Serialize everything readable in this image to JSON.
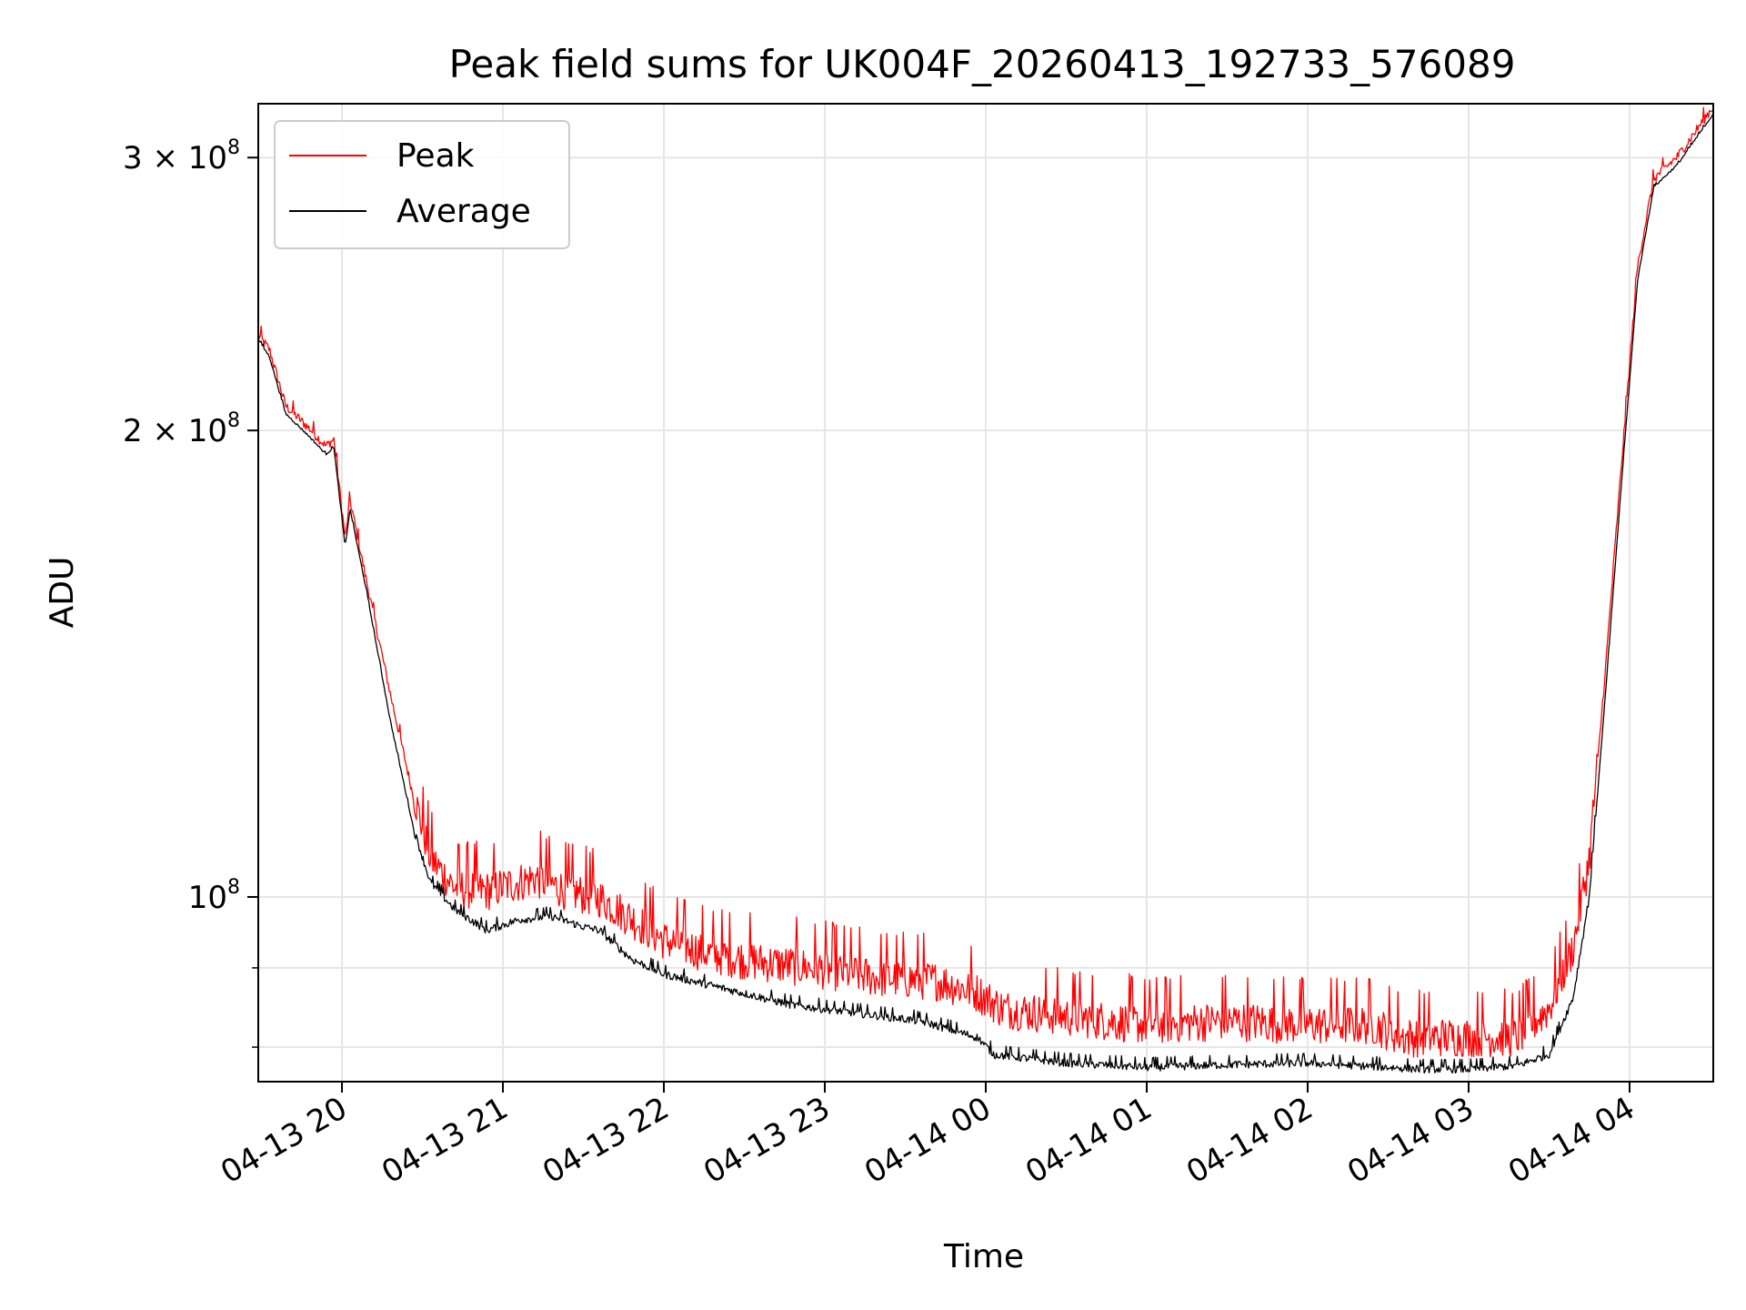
{
  "chart_data": {
    "type": "line",
    "title": "Peak field sums for UK004F_20260413_192733_576089",
    "xlabel": "Time",
    "ylabel": "ADU",
    "yscale": "log",
    "ylim": [
      76000000,
      325000000
    ],
    "xlim_hours": [
      -0.52,
      8.52
    ],
    "x_ticks": [
      {
        "hour": 0,
        "label": "04-13 20"
      },
      {
        "hour": 1,
        "label": "04-13 21"
      },
      {
        "hour": 2,
        "label": "04-13 22"
      },
      {
        "hour": 3,
        "label": "04-13 23"
      },
      {
        "hour": 4,
        "label": "04-14 00"
      },
      {
        "hour": 5,
        "label": "04-14 01"
      },
      {
        "hour": 6,
        "label": "04-14 02"
      },
      {
        "hour": 7,
        "label": "04-14 03"
      },
      {
        "hour": 8,
        "label": "04-14 04"
      }
    ],
    "y_ticks": [
      {
        "value": 100000000,
        "mantissa": "",
        "exp": "8"
      },
      {
        "value": 200000000,
        "mantissa": "2",
        "exp": "8"
      },
      {
        "value": 300000000,
        "mantissa": "3",
        "exp": "8"
      }
    ],
    "y_minor_ticks": [
      80000000,
      90000000
    ],
    "legend": {
      "location": "upper-left"
    },
    "series": [
      {
        "name": "Peak",
        "color": "#ff0000",
        "noise": 0.06,
        "points": [
          [
            -0.52,
            230000000
          ],
          [
            -0.45,
            225000000
          ],
          [
            -0.35,
            207000000
          ],
          [
            -0.2,
            200000000
          ],
          [
            -0.1,
            195000000
          ],
          [
            -0.05,
            197000000
          ],
          [
            0.02,
            170000000
          ],
          [
            0.05,
            180000000
          ],
          [
            0.15,
            160000000
          ],
          [
            0.3,
            135000000
          ],
          [
            0.45,
            115000000
          ],
          [
            0.55,
            105000000
          ],
          [
            0.7,
            100500000
          ],
          [
            0.9,
            100000000
          ],
          [
            1.2,
            102000000
          ],
          [
            1.4,
            100000000
          ],
          [
            1.6,
            99000000
          ],
          [
            1.8,
            96000000
          ],
          [
            2.0,
            93000000
          ],
          [
            2.3,
            91000000
          ],
          [
            2.6,
            90000000
          ],
          [
            3.0,
            89000000
          ],
          [
            3.3,
            88000000
          ],
          [
            3.7,
            87500000
          ],
          [
            3.95,
            86000000
          ],
          [
            4.1,
            84000000
          ],
          [
            4.5,
            83000000
          ],
          [
            5.0,
            82000000
          ],
          [
            5.5,
            82500000
          ],
          [
            6.0,
            82000000
          ],
          [
            6.4,
            82000000
          ],
          [
            6.6,
            80500000
          ],
          [
            7.0,
            80500000
          ],
          [
            7.3,
            80500000
          ],
          [
            7.5,
            84000000
          ],
          [
            7.65,
            92000000
          ],
          [
            7.75,
            105000000
          ],
          [
            7.85,
            140000000
          ],
          [
            7.95,
            190000000
          ],
          [
            8.05,
            255000000
          ],
          [
            8.15,
            290000000
          ],
          [
            8.3,
            300000000
          ],
          [
            8.52,
            323000000
          ]
        ]
      },
      {
        "name": "Average",
        "color": "#000000",
        "noise": 0.012,
        "points": [
          [
            -0.52,
            229000000
          ],
          [
            -0.45,
            223000000
          ],
          [
            -0.35,
            205000000
          ],
          [
            -0.2,
            198000000
          ],
          [
            -0.1,
            193000000
          ],
          [
            -0.05,
            195000000
          ],
          [
            0.02,
            168000000
          ],
          [
            0.05,
            178000000
          ],
          [
            0.15,
            158000000
          ],
          [
            0.3,
            130000000
          ],
          [
            0.45,
            110000000
          ],
          [
            0.55,
            102000000
          ],
          [
            0.7,
            98000000
          ],
          [
            0.9,
            95000000
          ],
          [
            1.1,
            96500000
          ],
          [
            1.3,
            97000000
          ],
          [
            1.5,
            95500000
          ],
          [
            1.6,
            95000000
          ],
          [
            1.8,
            91000000
          ],
          [
            2.0,
            89000000
          ],
          [
            2.4,
            87000000
          ],
          [
            2.8,
            85000000
          ],
          [
            3.2,
            84000000
          ],
          [
            3.6,
            83000000
          ],
          [
            3.95,
            81000000
          ],
          [
            4.05,
            79000000
          ],
          [
            4.5,
            78000000
          ],
          [
            5.0,
            77500000
          ],
          [
            5.5,
            77800000
          ],
          [
            6.0,
            78000000
          ],
          [
            6.4,
            77600000
          ],
          [
            6.7,
            77300000
          ],
          [
            7.0,
            77300000
          ],
          [
            7.3,
            77700000
          ],
          [
            7.5,
            79000000
          ],
          [
            7.65,
            86000000
          ],
          [
            7.75,
            100000000
          ],
          [
            7.85,
            135000000
          ],
          [
            7.95,
            185000000
          ],
          [
            8.05,
            250000000
          ],
          [
            8.15,
            287000000
          ],
          [
            8.3,
            297000000
          ],
          [
            8.52,
            320000000
          ]
        ]
      }
    ]
  }
}
